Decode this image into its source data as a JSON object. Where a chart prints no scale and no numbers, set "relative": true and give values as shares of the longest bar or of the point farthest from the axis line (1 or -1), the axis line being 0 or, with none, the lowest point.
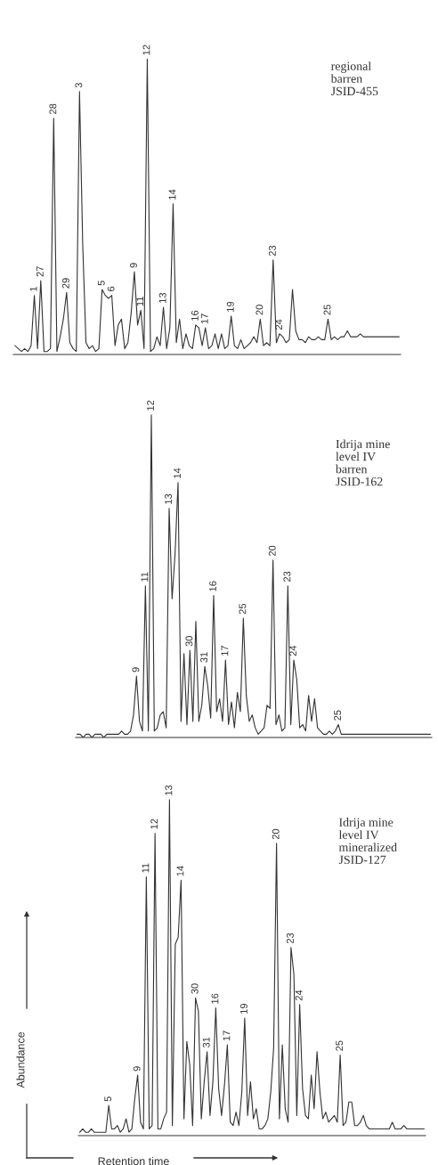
{
  "chart_data": [
    {
      "type": "line",
      "relative": true,
      "categories": [
        null,
        null,
        null,
        null,
        null,
        null,
        "1",
        null,
        "27",
        null,
        null,
        null,
        "28",
        null,
        null,
        null,
        "29",
        null,
        null,
        null,
        "3",
        null,
        null,
        null,
        null,
        null,
        null,
        "5",
        null,
        null,
        "6",
        null,
        null,
        null,
        null,
        null,
        null,
        "9",
        null,
        "11",
        null,
        "12",
        null,
        null,
        null,
        null,
        "13",
        null,
        null,
        "14",
        null,
        null,
        null,
        null,
        null,
        null,
        "16",
        null,
        null,
        "17",
        null,
        null,
        null,
        null,
        null,
        null,
        null,
        "19",
        null,
        null,
        null,
        null,
        null,
        null,
        null,
        null,
        "20",
        null,
        null,
        null,
        "23",
        null,
        "24",
        null,
        null,
        null,
        null,
        null,
        null,
        null,
        null,
        null,
        null,
        null,
        null,
        null,
        null,
        "25",
        null,
        null,
        null,
        null,
        null,
        null,
        null,
        null,
        null,
        null,
        null,
        null,
        null,
        null,
        null,
        null,
        null,
        null,
        null,
        null,
        null,
        null
      ],
      "annotations": [
        "regional\nbarren\nJSID-455"
      ],
      "series": [
        {
          "color": "#333333",
          "values": [
            0.03,
            0.02,
            0.01,
            0.02,
            0.01,
            0.03,
            0.2,
            0.02,
            0.25,
            0.01,
            0.01,
            0.02,
            0.8,
            0.01,
            0.06,
            0.12,
            0.21,
            0.04,
            0.02,
            0.01,
            0.89,
            0.37,
            0.04,
            0.02,
            0.03,
            0.01,
            0.02,
            0.22,
            0.2,
            0.19,
            0.2,
            0.03,
            0.1,
            0.12,
            0.02,
            0.04,
            0.14,
            0.28,
            0.1,
            0.15,
            0.02,
            1.0,
            0.01,
            0.02,
            0.06,
            0.03,
            0.16,
            0.02,
            0.09,
            0.51,
            0.04,
            0.12,
            0.02,
            0.07,
            0.03,
            0.02,
            0.1,
            0.09,
            0.03,
            0.09,
            0.02,
            0.03,
            0.07,
            0.02,
            0.07,
            0.02,
            0.03,
            0.13,
            0.03,
            0.02,
            0.05,
            0.02,
            0.03,
            0.04,
            0.06,
            0.04,
            0.12,
            0.03,
            0.04,
            0.03,
            0.32,
            0.04,
            0.07,
            0.06,
            0.04,
            0.05,
            0.22,
            0.08,
            0.05,
            0.05,
            0.04,
            0.06,
            0.05,
            0.05,
            0.06,
            0.05,
            0.05,
            0.12,
            0.05,
            0.06,
            0.05,
            0.06,
            0.06,
            0.08,
            0.06,
            0.06,
            0.06,
            0.07,
            0.06,
            0.06,
            0.06,
            0.06,
            0.06,
            0.06,
            0.06,
            0.06,
            0.06,
            0.06,
            0.06,
            0.06
          ]
        }
      ]
    },
    {
      "type": "line",
      "relative": true,
      "categories": [
        null,
        null,
        null,
        null,
        null,
        null,
        null,
        null,
        null,
        null,
        null,
        null,
        null,
        null,
        null,
        null,
        null,
        null,
        null,
        null,
        "9",
        null,
        null,
        "11",
        null,
        "12",
        null,
        null,
        null,
        null,
        null,
        "13",
        null,
        null,
        "14",
        null,
        null,
        null,
        "30",
        null,
        null,
        null,
        null,
        "31",
        null,
        null,
        "16",
        null,
        null,
        null,
        "17",
        null,
        null,
        null,
        null,
        null,
        "25",
        null,
        null,
        null,
        null,
        null,
        null,
        null,
        null,
        null,
        "20",
        null,
        null,
        null,
        null,
        "23",
        null,
        "24",
        null,
        null,
        null,
        null,
        null,
        null,
        null,
        null,
        null,
        null,
        null,
        null,
        null,
        null,
        "25",
        null,
        null,
        null,
        null,
        null,
        null,
        null,
        null,
        null,
        null,
        null,
        null,
        null,
        null,
        null,
        null,
        null,
        null,
        null,
        null,
        null,
        null,
        null,
        null,
        null,
        null,
        null,
        null,
        null,
        null,
        null
      ],
      "annotations": [
        "Idrija mine\nlevel IV\nbarren\nJSID-162"
      ],
      "series": [
        {
          "color": "#333333",
          "values": [
            0.01,
            0.01,
            0.0,
            0.01,
            0.01,
            0.0,
            0.01,
            0.01,
            0.01,
            0.0,
            0.01,
            0.01,
            0.01,
            0.01,
            0.01,
            0.02,
            0.01,
            0.01,
            0.02,
            0.07,
            0.19,
            0.05,
            0.02,
            0.47,
            0.02,
            1.0,
            0.02,
            0.03,
            0.07,
            0.08,
            0.03,
            0.71,
            0.43,
            0.57,
            0.79,
            0.05,
            0.26,
            0.04,
            0.27,
            0.05,
            0.36,
            0.05,
            0.1,
            0.22,
            0.16,
            0.06,
            0.44,
            0.08,
            0.12,
            0.05,
            0.24,
            0.04,
            0.11,
            0.03,
            0.14,
            0.08,
            0.37,
            0.13,
            0.05,
            0.07,
            0.03,
            0.01,
            0.02,
            0.03,
            0.1,
            0.09,
            0.55,
            0.04,
            0.07,
            0.02,
            0.03,
            0.47,
            0.04,
            0.24,
            0.18,
            0.03,
            0.04,
            0.02,
            0.13,
            0.05,
            0.12,
            0.03,
            0.02,
            0.01,
            0.01,
            0.02,
            0.01,
            0.02,
            0.04,
            0.01,
            0.01,
            0.01,
            0.01,
            0.01,
            0.01,
            0.01,
            0.01,
            0.01,
            0.01,
            0.01,
            0.01,
            0.01,
            0.01,
            0.01,
            0.01,
            0.01,
            0.01,
            0.01,
            0.01,
            0.01,
            0.01,
            0.01,
            0.01,
            0.01,
            0.01,
            0.01,
            0.01,
            0.01,
            0.01,
            0.01
          ]
        }
      ]
    },
    {
      "type": "line",
      "relative": true,
      "xlabel": "Retention time",
      "ylabel": "Abundance",
      "categories": [
        null,
        null,
        null,
        null,
        null,
        null,
        null,
        null,
        null,
        null,
        "5",
        null,
        null,
        null,
        null,
        null,
        null,
        null,
        null,
        null,
        "9",
        null,
        null,
        "11",
        null,
        null,
        "12",
        null,
        null,
        null,
        null,
        "13",
        null,
        null,
        null,
        "14",
        null,
        null,
        null,
        null,
        "30",
        null,
        null,
        null,
        "31",
        null,
        null,
        "16",
        null,
        null,
        null,
        "17",
        null,
        null,
        null,
        null,
        null,
        "19",
        null,
        null,
        null,
        null,
        null,
        null,
        null,
        null,
        null,
        null,
        "20",
        null,
        null,
        null,
        null,
        "23",
        null,
        null,
        "24",
        null,
        null,
        null,
        null,
        null,
        null,
        null,
        null,
        null,
        null,
        null,
        null,
        null,
        "25",
        null,
        null,
        null,
        null,
        null,
        null,
        null,
        null,
        null,
        null,
        null,
        null,
        null,
        null,
        null,
        null,
        null,
        null,
        null,
        null,
        null,
        null,
        null,
        null,
        null,
        null,
        null,
        null,
        null
      ],
      "annotations": [
        "Idrija mine\nlevel IV\nmineralized\nJSID-127"
      ],
      "series": [
        {
          "color": "#333333",
          "values": [
            0.01,
            0.02,
            0.01,
            0.01,
            0.02,
            0.01,
            0.01,
            0.01,
            0.01,
            0.01,
            0.09,
            0.02,
            0.02,
            0.03,
            0.01,
            0.02,
            0.05,
            0.01,
            0.02,
            0.11,
            0.18,
            0.04,
            0.02,
            0.77,
            0.02,
            0.03,
            0.9,
            0.02,
            0.02,
            0.05,
            0.07,
            1.0,
            0.03,
            0.57,
            0.59,
            0.76,
            0.05,
            0.28,
            0.21,
            0.03,
            0.41,
            0.37,
            0.05,
            0.16,
            0.25,
            0.06,
            0.16,
            0.38,
            0.14,
            0.06,
            0.15,
            0.27,
            0.04,
            0.03,
            0.07,
            0.03,
            0.13,
            0.35,
            0.06,
            0.16,
            0.05,
            0.08,
            0.02,
            0.02,
            0.03,
            0.05,
            0.13,
            0.26,
            0.87,
            0.05,
            0.27,
            0.08,
            0.04,
            0.56,
            0.48,
            0.06,
            0.39,
            0.14,
            0.06,
            0.05,
            0.18,
            0.08,
            0.25,
            0.13,
            0.05,
            0.07,
            0.04,
            0.05,
            0.06,
            0.04,
            0.24,
            0.03,
            0.04,
            0.1,
            0.1,
            0.03,
            0.03,
            0.04,
            0.06,
            0.03,
            0.02,
            0.02,
            0.02,
            0.02,
            0.02,
            0.02,
            0.02,
            0.02,
            0.04,
            0.02,
            0.02,
            0.02,
            0.03,
            0.02,
            0.02,
            0.02,
            0.02,
            0.02,
            0.02,
            0.02
          ]
        }
      ]
    }
  ]
}
